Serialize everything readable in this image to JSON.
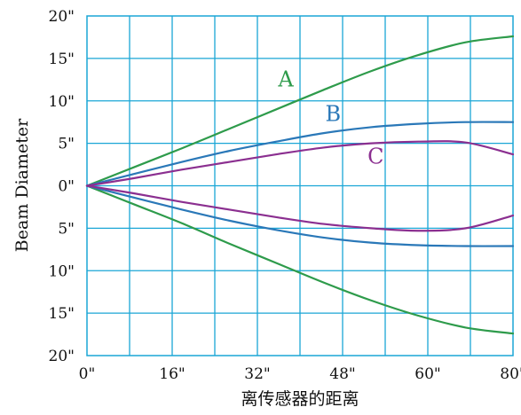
{
  "chart_data": {
    "type": "line",
    "xlabel": "离传感器的距离",
    "ylabel": "Beam Diameter",
    "x_ticks": [
      "0\"",
      "16\"",
      "32\"",
      "48\"",
      "60\"",
      "80\""
    ],
    "y_ticks": [
      "20\"",
      "15\"",
      "10\"",
      "5\"",
      "0\"",
      "5\"",
      "10\"",
      "15\"",
      "20\""
    ],
    "y_tick_values": [
      20,
      15,
      10,
      5,
      0,
      -5,
      -10,
      -15,
      -20
    ],
    "xlim": [
      0,
      90
    ],
    "ylim": [
      -20,
      20
    ],
    "grid": true,
    "grid_color": "#1aa6d6",
    "curve_labels": [
      {
        "text": "A",
        "color": "#2e9b4b",
        "x": 42,
        "y": 11.7
      },
      {
        "text": "B",
        "color": "#2a78b8",
        "x": 52,
        "y": 7.6
      },
      {
        "text": "C",
        "color": "#8b2f90",
        "x": 61,
        "y": 2.6
      }
    ],
    "series": [
      {
        "id": "A-upper",
        "color": "#2e9b4b",
        "x": [
          0,
          10,
          20,
          30,
          40,
          50,
          60,
          70,
          80,
          90
        ],
        "y": [
          0,
          2.2,
          4.4,
          6.7,
          9.0,
          11.3,
          13.5,
          15.4,
          16.9,
          17.6
        ]
      },
      {
        "id": "A-lower",
        "color": "#2e9b4b",
        "x": [
          0,
          10,
          20,
          30,
          40,
          50,
          60,
          70,
          80,
          90
        ],
        "y": [
          0,
          -2.2,
          -4.4,
          -6.8,
          -9.1,
          -11.4,
          -13.5,
          -15.3,
          -16.7,
          -17.4
        ]
      },
      {
        "id": "B-upper",
        "color": "#2a78b8",
        "x": [
          0,
          10,
          20,
          30,
          40,
          50,
          60,
          70,
          80,
          90
        ],
        "y": [
          0,
          1.4,
          2.8,
          4.1,
          5.2,
          6.2,
          6.9,
          7.3,
          7.5,
          7.5
        ]
      },
      {
        "id": "B-lower",
        "color": "#2a78b8",
        "x": [
          0,
          10,
          20,
          30,
          40,
          50,
          60,
          70,
          80,
          90
        ],
        "y": [
          0,
          -1.4,
          -2.8,
          -4.1,
          -5.2,
          -6.1,
          -6.7,
          -7.0,
          -7.1,
          -7.1
        ]
      },
      {
        "id": "C-upper",
        "color": "#8b2f90",
        "x": [
          0,
          10,
          20,
          30,
          40,
          50,
          60,
          70,
          80,
          90
        ],
        "y": [
          0,
          0.9,
          1.9,
          2.8,
          3.7,
          4.5,
          5.0,
          5.2,
          5.1,
          3.7
        ]
      },
      {
        "id": "C-lower",
        "color": "#8b2f90",
        "x": [
          0,
          10,
          20,
          30,
          40,
          50,
          60,
          70,
          80,
          90
        ],
        "y": [
          0,
          -0.9,
          -1.9,
          -2.8,
          -3.7,
          -4.5,
          -5.0,
          -5.3,
          -5.0,
          -3.5
        ]
      }
    ]
  }
}
